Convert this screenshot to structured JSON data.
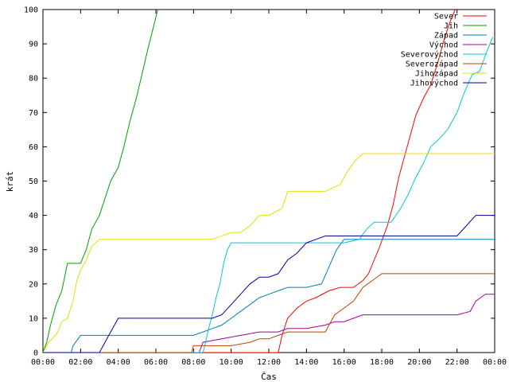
{
  "chart_data": {
    "type": "line",
    "title": "",
    "xlabel": "Čas",
    "ylabel": "krát",
    "xlim": [
      0,
      24
    ],
    "ylim": [
      0,
      100
    ],
    "x_ticks": [
      {
        "value": 0,
        "label": "00:00"
      },
      {
        "value": 2,
        "label": "02:00"
      },
      {
        "value": 4,
        "label": "04:00"
      },
      {
        "value": 6,
        "label": "06:00"
      },
      {
        "value": 8,
        "label": "08:00"
      },
      {
        "value": 10,
        "label": "10:00"
      },
      {
        "value": 12,
        "label": "12:00"
      },
      {
        "value": 14,
        "label": "14:00"
      },
      {
        "value": 16,
        "label": "16:00"
      },
      {
        "value": 18,
        "label": "18:00"
      },
      {
        "value": 20,
        "label": "20:00"
      },
      {
        "value": 22,
        "label": "22:00"
      },
      {
        "value": 24,
        "label": "00:00"
      }
    ],
    "y_ticks": [
      0,
      10,
      20,
      30,
      40,
      50,
      60,
      70,
      80,
      90,
      100
    ],
    "grid": false,
    "legend_position": "top-right",
    "series": [
      {
        "name": "Sever",
        "color": "#ff0000",
        "x": [
          0,
          12.5,
          12.7,
          13.0,
          13.5,
          14.0,
          14.5,
          15.2,
          15.8,
          16.5,
          17.0,
          17.3,
          17.6,
          17.9,
          18.3,
          18.6,
          18.9,
          19.2,
          19.5,
          19.8,
          20.2,
          20.6,
          21.0,
          21.3,
          21.6,
          21.9
        ],
        "y": [
          0,
          0,
          5,
          10,
          13,
          15,
          16,
          18,
          19,
          19,
          21,
          23,
          27,
          31,
          37,
          43,
          51,
          57,
          63,
          69,
          74,
          78,
          85,
          91,
          96,
          100
        ]
      },
      {
        "name": "Jih",
        "color": "#00a000",
        "x": [
          0,
          0.2,
          0.4,
          0.7,
          1.0,
          1.3,
          1.6,
          2.0,
          2.3,
          2.6,
          3.0,
          3.3,
          3.6,
          4.0,
          4.3,
          4.6,
          5.0,
          5.3,
          5.6,
          6.1
        ],
        "y": [
          0,
          3,
          8,
          14,
          18,
          26,
          26,
          26,
          30,
          36,
          40,
          45,
          50,
          54,
          60,
          67,
          75,
          82,
          89,
          100
        ]
      },
      {
        "name": "Západ",
        "color": "#0080c0",
        "x": [
          0,
          1.5,
          1.6,
          2.0,
          4.0,
          8.0,
          8.5,
          9.0,
          9.5,
          10.0,
          10.5,
          11.0,
          11.5,
          12.0,
          12.5,
          13.0,
          14.0,
          14.8,
          15.2,
          15.6,
          16.0,
          16.5,
          17.0,
          17.3,
          24.0
        ],
        "y": [
          0,
          0,
          2,
          5,
          5,
          5,
          6,
          7,
          8,
          10,
          12,
          14,
          16,
          17,
          18,
          19,
          19,
          20,
          25,
          30,
          33,
          33,
          33,
          33,
          33
        ]
      },
      {
        "name": "Východ",
        "color": "#a000a0",
        "x": [
          0,
          8.3,
          8.5,
          9.5,
          10.5,
          11.5,
          12.5,
          13.0,
          14.0,
          15.0,
          15.5,
          16.0,
          16.5,
          17.0,
          18.0,
          19.0,
          20.0,
          21.0,
          22.0,
          22.7,
          23.0,
          23.5,
          24.0
        ],
        "y": [
          0,
          0,
          3,
          4,
          5,
          6,
          6,
          7,
          7,
          8,
          9,
          9,
          10,
          11,
          11,
          11,
          11,
          11,
          11,
          12,
          15,
          17,
          17
        ]
      },
      {
        "name": "Severovýchod",
        "color": "#00c8d8",
        "x": [
          0,
          8.5,
          8.6,
          8.8,
          9.0,
          9.2,
          9.4,
          9.6,
          9.8,
          10.0,
          10.5,
          11.0,
          12.0,
          13.0,
          14.0,
          15.0,
          16.0,
          16.8,
          17.2,
          17.6,
          18.0,
          18.5,
          19.0,
          19.4,
          19.8,
          20.2,
          20.6,
          21.0,
          21.5,
          22.0,
          22.4,
          22.8,
          23.2,
          23.6,
          23.9
        ],
        "y": [
          0,
          0,
          2,
          7,
          11,
          16,
          20,
          26,
          30,
          32,
          32,
          32,
          32,
          32,
          32,
          32,
          32,
          33,
          36,
          38,
          38,
          38,
          42,
          46,
          51,
          55,
          60,
          62,
          65,
          70,
          76,
          81,
          82,
          88,
          92
        ]
      },
      {
        "name": "Severozápad",
        "color": "#c04000",
        "x": [
          0,
          7.9,
          8.0,
          9.0,
          10.0,
          11.0,
          11.5,
          12.0,
          12.5,
          13.0,
          13.5,
          14.0,
          14.5,
          15.0,
          15.5,
          16.0,
          16.5,
          17.0,
          17.5,
          18.0,
          24.0
        ],
        "y": [
          0,
          0,
          2,
          2,
          2,
          3,
          4,
          4,
          5,
          6,
          6,
          6,
          6,
          6,
          11,
          13,
          15,
          19,
          21,
          23,
          23
        ]
      },
      {
        "name": "Jihozápad",
        "color": "#e0e000",
        "x": [
          0,
          0.3,
          0.5,
          0.8,
          1.0,
          1.3,
          1.6,
          1.8,
          2.0,
          2.3,
          2.6,
          3.0,
          3.3,
          4.0,
          6.0,
          8.0,
          9.0,
          10.0,
          10.5,
          11.0,
          11.5,
          12.0,
          12.7,
          13.0,
          14.0,
          15.0,
          15.8,
          16.2,
          16.6,
          17.0,
          18.0,
          20.0,
          24.0
        ],
        "y": [
          0,
          3,
          4,
          6,
          9,
          10,
          15,
          21,
          24,
          27,
          31,
          33,
          33,
          33,
          33,
          33,
          33,
          35,
          35,
          37,
          40,
          40,
          42,
          47,
          47,
          47,
          49,
          53,
          56,
          58,
          58,
          58,
          58
        ]
      },
      {
        "name": "Jihovýchod",
        "color": "#0000a0",
        "x": [
          0,
          3.0,
          3.2,
          3.5,
          3.8,
          4.0,
          6.0,
          8.0,
          9.0,
          9.5,
          10.0,
          10.5,
          11.0,
          11.5,
          12.0,
          12.5,
          13.0,
          13.5,
          14.0,
          14.5,
          15.0,
          16.0,
          17.0,
          18.0,
          19.0,
          20.0,
          21.0,
          22.0,
          22.5,
          23.0,
          24.0
        ],
        "y": [
          0,
          0,
          2,
          5,
          8,
          10,
          10,
          10,
          10,
          11,
          14,
          17,
          20,
          22,
          22,
          23,
          27,
          29,
          32,
          33,
          34,
          34,
          34,
          34,
          34,
          34,
          34,
          34,
          37,
          40,
          40
        ]
      }
    ]
  }
}
